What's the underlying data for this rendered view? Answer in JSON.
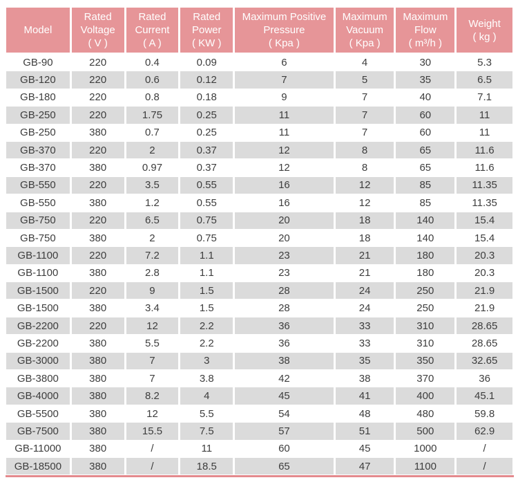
{
  "colors": {
    "header_bg": "#e69598",
    "header_text": "#ffffff",
    "row_bg": "#ffffff",
    "row_alt_bg": "#dbdbdb",
    "cell_text": "#3d3d3d",
    "bottom_rule": "#e4898d"
  },
  "table": {
    "headers": [
      {
        "id": "model",
        "lines": [
          "Model"
        ]
      },
      {
        "id": "rated-voltage",
        "lines": [
          "Rated",
          "Voltage",
          "( V )"
        ]
      },
      {
        "id": "rated-current",
        "lines": [
          "Rated",
          "Current",
          "( A )"
        ]
      },
      {
        "id": "rated-power",
        "lines": [
          "Rated",
          "Power",
          "( KW )"
        ]
      },
      {
        "id": "max-positive-pressure",
        "lines": [
          "Maximum Positive",
          "Pressure",
          "( Kpa )"
        ]
      },
      {
        "id": "max-vacuum",
        "lines": [
          "Maximum",
          "Vacuum",
          "( Kpa )"
        ]
      },
      {
        "id": "max-flow",
        "lines": [
          "Maximum",
          "Flow",
          "( m³/h )"
        ]
      },
      {
        "id": "weight",
        "lines": [
          "Weight",
          "( kg )"
        ]
      }
    ],
    "rows": [
      [
        "GB-90",
        "220",
        "0.4",
        "0.09",
        "6",
        "4",
        "30",
        "5.3"
      ],
      [
        "GB-120",
        "220",
        "0.6",
        "0.12",
        "7",
        "5",
        "35",
        "6.5"
      ],
      [
        "GB-180",
        "220",
        "0.8",
        "0.18",
        "9",
        "7",
        "40",
        "7.1"
      ],
      [
        "GB-250",
        "220",
        "1.75",
        "0.25",
        "11",
        "7",
        "60",
        "11"
      ],
      [
        "GB-250",
        "380",
        "0.7",
        "0.25",
        "11",
        "7",
        "60",
        "11"
      ],
      [
        "GB-370",
        "220",
        "2",
        "0.37",
        "12",
        "8",
        "65",
        "11.6"
      ],
      [
        "GB-370",
        "380",
        "0.97",
        "0.37",
        "12",
        "8",
        "65",
        "11.6"
      ],
      [
        "GB-550",
        "220",
        "3.5",
        "0.55",
        "16",
        "12",
        "85",
        "11.35"
      ],
      [
        "GB-550",
        "380",
        "1.2",
        "0.55",
        "16",
        "12",
        "85",
        "11.35"
      ],
      [
        "GB-750",
        "220",
        "6.5",
        "0.75",
        "20",
        "18",
        "140",
        "15.4"
      ],
      [
        "GB-750",
        "380",
        "2",
        "0.75",
        "20",
        "18",
        "140",
        "15.4"
      ],
      [
        "GB-1100",
        "220",
        "7.2",
        "1.1",
        "23",
        "21",
        "180",
        "20.3"
      ],
      [
        "GB-1100",
        "380",
        "2.8",
        "1.1",
        "23",
        "21",
        "180",
        "20.3"
      ],
      [
        "GB-1500",
        "220",
        "9",
        "1.5",
        "28",
        "24",
        "250",
        "21.9"
      ],
      [
        "GB-1500",
        "380",
        "3.4",
        "1.5",
        "28",
        "24",
        "250",
        "21.9"
      ],
      [
        "GB-2200",
        "220",
        "12",
        "2.2",
        "36",
        "33",
        "310",
        "28.65"
      ],
      [
        "GB-2200",
        "380",
        "5.5",
        "2.2",
        "36",
        "33",
        "310",
        "28.65"
      ],
      [
        "GB-3000",
        "380",
        "7",
        "3",
        "38",
        "35",
        "350",
        "32.65"
      ],
      [
        "GB-3800",
        "380",
        "7",
        "3.8",
        "42",
        "38",
        "370",
        "36"
      ],
      [
        "GB-4000",
        "380",
        "8.2",
        "4",
        "45",
        "41",
        "400",
        "45.1"
      ],
      [
        "GB-5500",
        "380",
        "12",
        "5.5",
        "54",
        "48",
        "480",
        "59.8"
      ],
      [
        "GB-7500",
        "380",
        "15.5",
        "7.5",
        "57",
        "51",
        "500",
        "62.9"
      ],
      [
        "GB-11000",
        "380",
        "/",
        "11",
        "60",
        "45",
        "1000",
        "/"
      ],
      [
        "GB-18500",
        "380",
        "/",
        "18.5",
        "65",
        "47",
        "1100",
        "/"
      ]
    ]
  }
}
